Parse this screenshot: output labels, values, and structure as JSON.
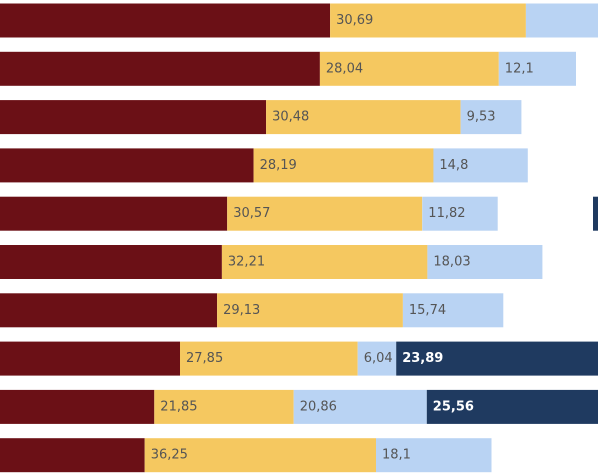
{
  "chart_data": {
    "type": "bar",
    "orientation": "horizontal",
    "stacked": true,
    "visible_crop": "partial view of a stacked horizontal bar chart; left portion of the first segment and right portion cut off",
    "categories": [
      "",
      "",
      "",
      "",
      "",
      "",
      "",
      "",
      "",
      ""
    ],
    "series": [
      {
        "color": "#6b1016",
        "values": [
          null,
          null,
          null,
          null,
          null,
          null,
          null,
          null,
          null,
          null
        ]
      },
      {
        "color": "#f5c860",
        "values": [
          30.69,
          28.04,
          30.48,
          28.19,
          30.57,
          32.21,
          29.13,
          27.85,
          21.85,
          36.25
        ],
        "labels": [
          "30,69",
          "28,04",
          "30,48",
          "28,19",
          "30,57",
          "32,21",
          "29,13",
          "27,85",
          "21,85",
          "36,25"
        ]
      },
      {
        "color": "#b9d3f3",
        "values": [
          null,
          12.1,
          9.53,
          14.8,
          11.82,
          18.03,
          15.74,
          6.04,
          20.86,
          18.1
        ],
        "labels": [
          "",
          "12,1",
          "9,53",
          "14,8",
          "11,82",
          "18,03",
          "15,74",
          "6,04",
          "20,86",
          "18,1"
        ]
      },
      {
        "color": "#1f3a60",
        "values": [
          null,
          null,
          null,
          null,
          null,
          null,
          null,
          23.89,
          25.56,
          null
        ],
        "labels": [
          "",
          "",
          "",
          "",
          "",
          "",
          "",
          "23,89",
          "25,56",
          ""
        ]
      }
    ],
    "first_segment_visible_end_pct": [
      55.2,
      53.5,
      44.5,
      42.4,
      38.0,
      37.1,
      36.3,
      30.1,
      25.8,
      24.2
    ],
    "title": "",
    "xlabel": "",
    "ylabel": "",
    "grid": false,
    "legend": "none"
  }
}
